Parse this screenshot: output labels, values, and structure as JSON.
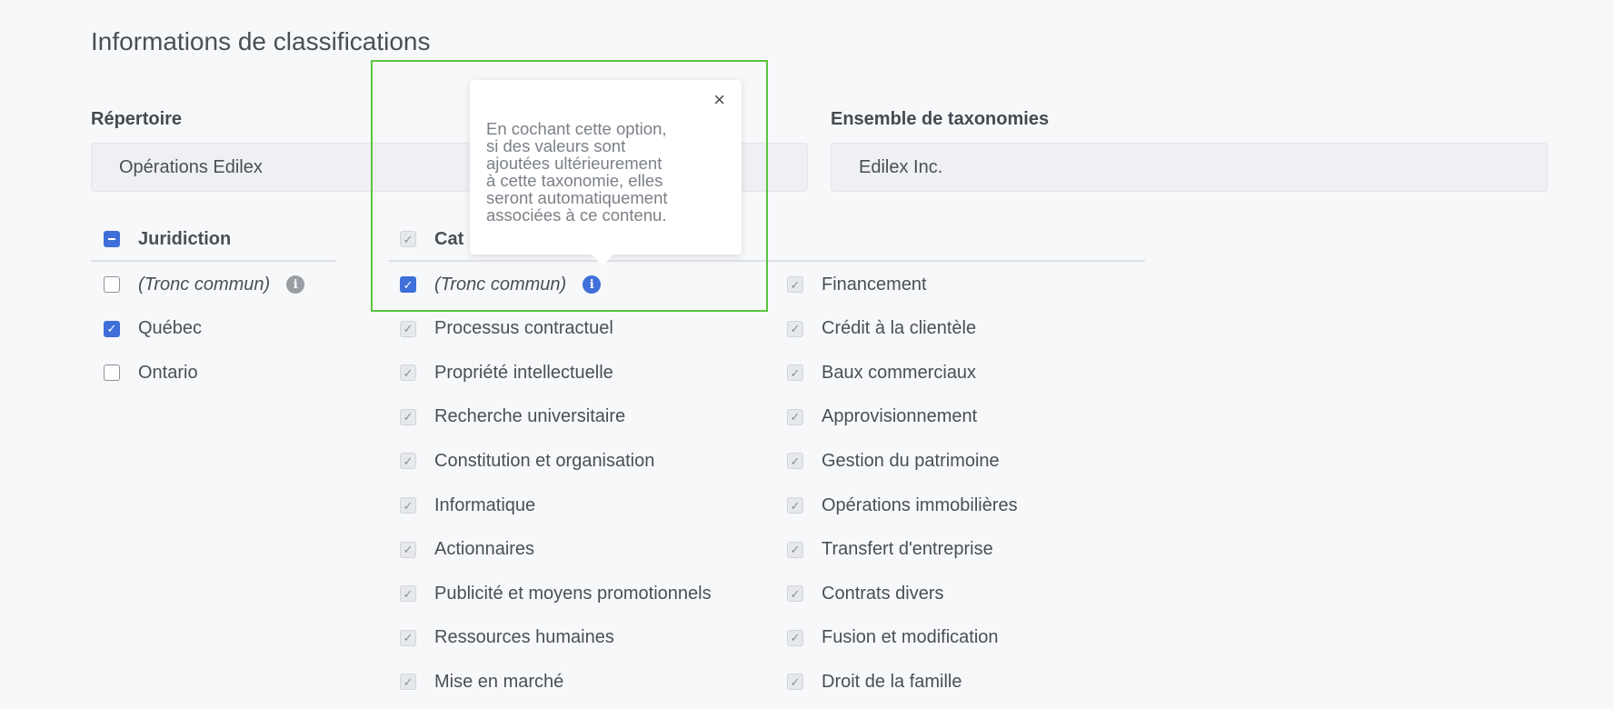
{
  "title": "Informations de classifications",
  "repertoire": {
    "label": "Répertoire",
    "value": "Opérations Edilex"
  },
  "ensemble": {
    "label": "Ensemble de taxonomies",
    "value": "Edilex Inc."
  },
  "juridiction": {
    "header": "Juridiction",
    "items": [
      {
        "label": "(Tronc commun)",
        "state": "unchecked",
        "italic": true,
        "info": true
      },
      {
        "label": "Québec",
        "state": "checked"
      },
      {
        "label": "Ontario",
        "state": "unchecked"
      }
    ]
  },
  "categorie": {
    "header": "Catégorie",
    "header_visible": "Cat",
    "col1": [
      {
        "label": "(Tronc commun)",
        "state": "checked",
        "italic": true,
        "info": true
      },
      {
        "label": "Processus contractuel",
        "state": "disabled"
      },
      {
        "label": "Propriété intellectuelle",
        "state": "disabled"
      },
      {
        "label": "Recherche universitaire",
        "state": "disabled"
      },
      {
        "label": "Constitution et organisation",
        "state": "disabled"
      },
      {
        "label": "Informatique",
        "state": "disabled"
      },
      {
        "label": "Actionnaires",
        "state": "disabled"
      },
      {
        "label": "Publicité et moyens promotionnels",
        "state": "disabled"
      },
      {
        "label": "Ressources humaines",
        "state": "disabled"
      },
      {
        "label": "Mise en marché",
        "state": "disabled"
      }
    ],
    "col2": [
      {
        "label": "Financement",
        "state": "disabled"
      },
      {
        "label": "Crédit à la clientèle",
        "state": "disabled"
      },
      {
        "label": "Baux commerciaux",
        "state": "disabled"
      },
      {
        "label": "Approvisionnement",
        "state": "disabled"
      },
      {
        "label": "Gestion du patrimoine",
        "state": "disabled"
      },
      {
        "label": "Opérations immobilières",
        "state": "disabled"
      },
      {
        "label": "Transfert d'entreprise",
        "state": "disabled"
      },
      {
        "label": "Contrats divers",
        "state": "disabled"
      },
      {
        "label": "Fusion et modification",
        "state": "disabled"
      },
      {
        "label": "Droit de la famille",
        "state": "disabled"
      }
    ]
  },
  "tooltip": {
    "lines": [
      "En cochant cette option,",
      "si des valeurs sont",
      "ajoutées ultérieurement",
      "à cette taxonomie, elles",
      "seront automatiquement",
      "associées à ce contenu."
    ],
    "close": "×"
  },
  "colors": {
    "accent": "#3f6fd8",
    "highlight": "#5ac33d",
    "info_gray": "#9a9ea5"
  }
}
